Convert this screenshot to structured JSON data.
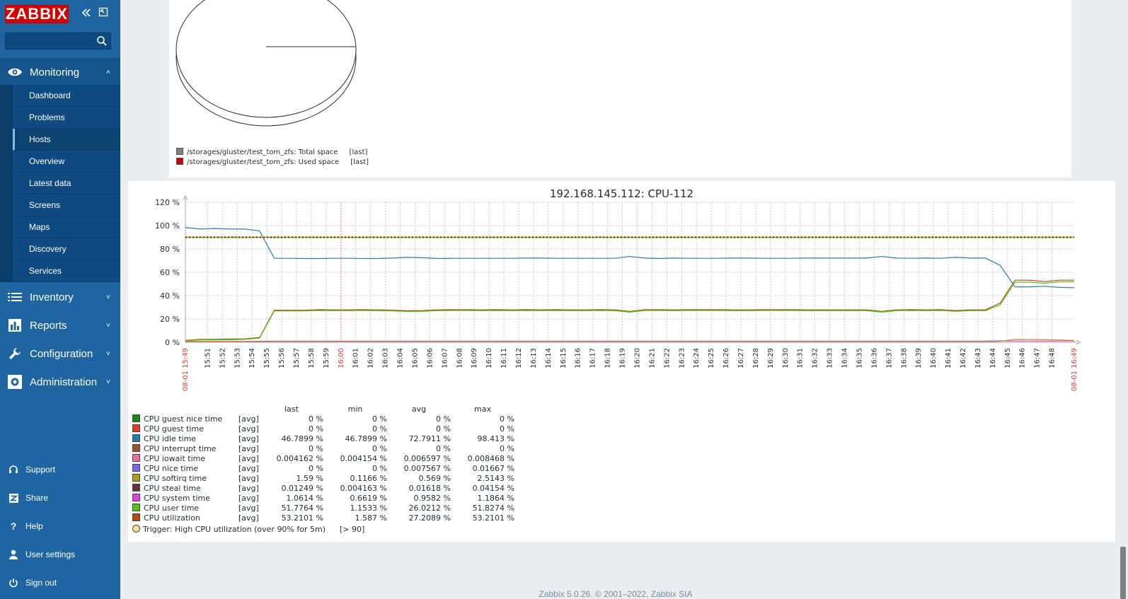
{
  "sidebar": {
    "logo": "ZABBIX",
    "search_placeholder": "",
    "sections": [
      {
        "label": "Monitoring"
      },
      {
        "label": "Inventory"
      },
      {
        "label": "Reports"
      },
      {
        "label": "Configuration"
      },
      {
        "label": "Administration"
      }
    ],
    "monitoring_items": [
      "Dashboard",
      "Problems",
      "Hosts",
      "Overview",
      "Latest data",
      "Screens",
      "Maps",
      "Discovery",
      "Services"
    ],
    "selected_item": "Hosts",
    "bottom": [
      "Support",
      "Share",
      "Help",
      "User settings",
      "Sign out"
    ]
  },
  "pie_legend": [
    {
      "label": "/storages/gluster/test_tom_zfs: Total space",
      "func": "[last]",
      "color": "#808080"
    },
    {
      "label": "/storages/gluster/test_tom_zfs: Used space",
      "func": "[last]",
      "color": "#c80000"
    }
  ],
  "chart_data": {
    "type": "line",
    "title": "192.168.145.112: CPU-112",
    "ylim": [
      0,
      120
    ],
    "y_ticks": [
      "0 %",
      "20 %",
      "40 %",
      "60 %",
      "80 %",
      "100 %",
      "120 %"
    ],
    "x_start_label": "08-01 15:49",
    "x_end_label": "08-01 16:49",
    "x_ticks": [
      "15:51",
      "15:52",
      "15:53",
      "15:54",
      "15:55",
      "15:56",
      "15:57",
      "15:58",
      "15:59",
      "16:00",
      "16:01",
      "16:02",
      "16:03",
      "16:04",
      "16:05",
      "16:06",
      "16:07",
      "16:08",
      "16:09",
      "16:10",
      "16:11",
      "16:12",
      "16:13",
      "16:14",
      "16:15",
      "16:16",
      "16:17",
      "16:18",
      "16:19",
      "16:20",
      "16:21",
      "16:22",
      "16:23",
      "16:24",
      "16:25",
      "16:26",
      "16:27",
      "16:28",
      "16:29",
      "16:30",
      "16:31",
      "16:32",
      "16:33",
      "16:34",
      "16:35",
      "16:36",
      "16:37",
      "16:38",
      "16:39",
      "16:40",
      "16:41",
      "16:42",
      "16:43",
      "16:44",
      "16:45",
      "16:46",
      "16:47",
      "16:48"
    ],
    "highlight_tick": "16:00",
    "grid": true,
    "trigger_value": 90,
    "series": [
      {
        "name": "CPU idle time",
        "color": "#2a7ab0",
        "values": [
          98.4,
          97,
          97.5,
          97,
          97,
          95.5,
          72,
          72,
          71.8,
          71.8,
          72,
          72,
          71.8,
          71.8,
          72.2,
          72.8,
          72.5,
          71.8,
          72,
          72,
          72,
          72,
          72,
          72.2,
          72.2,
          72,
          72,
          72,
          72,
          72,
          73.5,
          72.2,
          71.8,
          72.2,
          72,
          72,
          72,
          72.2,
          72.2,
          72,
          72,
          72,
          72.2,
          72.2,
          72.2,
          72.2,
          72.2,
          73.5,
          72.2,
          72,
          72.2,
          72,
          72.8,
          72.2,
          72.2,
          66,
          47.5,
          47.5,
          48,
          47,
          46.8
        ]
      },
      {
        "name": "CPU utilization",
        "color": "#b8470e",
        "values": [
          1.6,
          2.5,
          2.5,
          2.8,
          3,
          4,
          27.5,
          27.5,
          27.5,
          28,
          27.8,
          27.8,
          28,
          27.8,
          27.5,
          27,
          27.2,
          27.8,
          28,
          28,
          27.8,
          28,
          27.8,
          28,
          27.8,
          28,
          27.8,
          27.8,
          28,
          27.8,
          26.5,
          28,
          28,
          27.8,
          28,
          28,
          28,
          27.8,
          27.8,
          28,
          28,
          28,
          27.8,
          27.8,
          27.8,
          27.8,
          27.8,
          26.5,
          27.8,
          28,
          27.8,
          28,
          27.2,
          27.8,
          27.8,
          33.5,
          53.2,
          53.2,
          52,
          53.2,
          53.2
        ]
      },
      {
        "name": "CPU user time",
        "color": "#52c41a",
        "values": [
          1.2,
          2,
          2,
          2.2,
          2.5,
          3.5,
          26.8,
          26.8,
          26.8,
          27.2,
          27,
          27,
          27.2,
          27,
          26.8,
          26.4,
          26.5,
          27,
          27.2,
          27.2,
          27,
          27.2,
          27,
          27.2,
          27,
          27.2,
          27,
          27,
          27.2,
          27,
          25.8,
          27.2,
          27.2,
          27,
          27.2,
          27.2,
          27.2,
          27,
          27,
          27.2,
          27.2,
          27.2,
          27,
          27,
          27,
          27,
          27,
          25.8,
          27,
          27.2,
          27,
          27.2,
          26.5,
          27,
          27,
          32,
          51.5,
          51.5,
          50.6,
          51.8,
          51.8
        ]
      },
      {
        "name": "CPU system time",
        "color": "#e040e0",
        "values": [
          0.7,
          0.8,
          0.8,
          0.8,
          0.8,
          0.9,
          1,
          1,
          1,
          1,
          1,
          1,
          1,
          1,
          1,
          1,
          1,
          1,
          1,
          1,
          1,
          1,
          1,
          1,
          1,
          1,
          1,
          1,
          1,
          1,
          1,
          1,
          1,
          1,
          1,
          1,
          1,
          1,
          1,
          1,
          1,
          1,
          1,
          1,
          1,
          1,
          1,
          1,
          1,
          1,
          1,
          1,
          1,
          1,
          1,
          1.2,
          1.1,
          1.1,
          1,
          1.1,
          1.1
        ]
      },
      {
        "name": "CPU softirq time",
        "color": "#b59a1e",
        "values": [
          0.2,
          0.6,
          0.4,
          0.4,
          0.4,
          0.4,
          0.5,
          0.5,
          0.5,
          0.5,
          0.5,
          0.5,
          0.5,
          0.5,
          0.5,
          0.5,
          0.5,
          0.5,
          0.5,
          0.5,
          0.5,
          0.5,
          0.5,
          0.5,
          0.5,
          0.5,
          0.5,
          0.5,
          0.5,
          0.5,
          0.5,
          0.5,
          0.5,
          0.5,
          0.5,
          0.5,
          0.5,
          0.5,
          0.5,
          0.5,
          0.5,
          0.5,
          0.5,
          0.5,
          0.5,
          0.5,
          0.5,
          0.5,
          0.5,
          0.5,
          0.5,
          0.5,
          0.5,
          0.5,
          0.5,
          0.8,
          2.5,
          2.4,
          2.2,
          2,
          1.6
        ]
      }
    ]
  },
  "stats": {
    "headers": [
      "last",
      "min",
      "avg",
      "max"
    ],
    "rows": [
      {
        "color": "#1a8a1a",
        "name": "CPU guest nice time",
        "func": "[avg]",
        "last": "0 %",
        "min": "0 %",
        "avg": "0 %",
        "max": "0 %"
      },
      {
        "color": "#e8391e",
        "name": "CPU guest time",
        "func": "[avg]",
        "last": "0 %",
        "min": "0 %",
        "avg": "0 %",
        "max": "0 %"
      },
      {
        "color": "#2a7ab0",
        "name": "CPU idle time",
        "func": "[avg]",
        "last": "46.7899 %",
        "min": "46.7899 %",
        "avg": "72.7911 %",
        "max": "98.413 %"
      },
      {
        "color": "#a0522d",
        "name": "CPU interrupt time",
        "func": "[avg]",
        "last": "0 %",
        "min": "0 %",
        "avg": "0 %",
        "max": "0 %"
      },
      {
        "color": "#f06fa8",
        "name": "CPU iowait time",
        "func": "[avg]",
        "last": "0.004162 %",
        "min": "0.004154 %",
        "avg": "0.006597 %",
        "max": "0.008468 %"
      },
      {
        "color": "#7b68ee",
        "name": "CPU nice time",
        "func": "[avg]",
        "last": "0 %",
        "min": "0 %",
        "avg": "0.007567 %",
        "max": "0.01667 %"
      },
      {
        "color": "#b59a1e",
        "name": "CPU softirq time",
        "func": "[avg]",
        "last": "1.59 %",
        "min": "0.1166 %",
        "avg": "0.569 %",
        "max": "2.5143 %"
      },
      {
        "color": "#6b2f3a",
        "name": "CPU steal time",
        "func": "[avg]",
        "last": "0.01249 %",
        "min": "0.004163 %",
        "avg": "0.01618 %",
        "max": "0.04154 %"
      },
      {
        "color": "#e040e0",
        "name": "CPU system time",
        "func": "[avg]",
        "last": "1.0614 %",
        "min": "0.6619 %",
        "avg": "0.9582 %",
        "max": "1.1864 %"
      },
      {
        "color": "#52c41a",
        "name": "CPU user time",
        "func": "[avg]",
        "last": "51.7764 %",
        "min": "1.1533 %",
        "avg": "26.0212 %",
        "max": "51.8274 %"
      },
      {
        "color": "#b8470e",
        "name": "CPU utilization",
        "func": "[avg]",
        "last": "53.2101 %",
        "min": "1.587 %",
        "avg": "27.2089 %",
        "max": "53.2101 %"
      }
    ],
    "trigger_label": "Trigger: High CPU utilization (over 90% for 5m)",
    "trigger_value": "[> 90]"
  },
  "footer": "Zabbix 5.0.26. © 2001–2022, Zabbix SIA"
}
